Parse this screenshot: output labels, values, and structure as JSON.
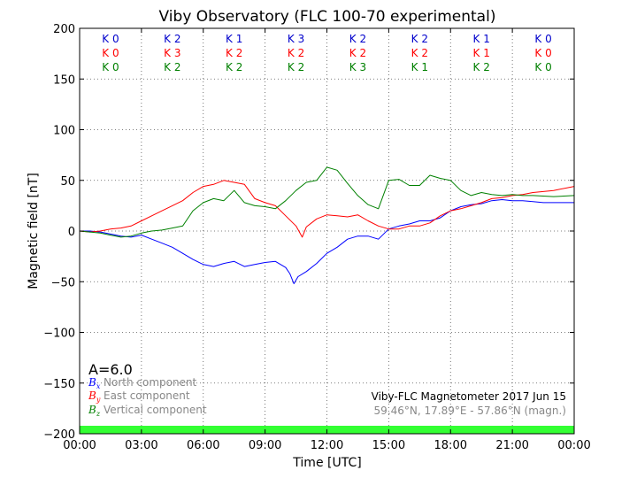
{
  "chart_data": {
    "type": "line",
    "title": "Viby Observatory (FLC 100-70 experimental)",
    "xlabel": "Time [UTC]",
    "ylabel": "Magnetic field [nT]",
    "xlim": [
      0,
      24
    ],
    "ylim": [
      -200,
      200
    ],
    "x_tick_labels": [
      "00:00",
      "03:00",
      "06:00",
      "09:00",
      "12:00",
      "15:00",
      "18:00",
      "21:00",
      "00:00"
    ],
    "y_ticks": [
      200,
      150,
      100,
      50,
      0,
      -50,
      -100,
      -150,
      -200
    ],
    "y_tick_labels": [
      "200",
      "150",
      "100",
      "50",
      "0",
      "−50",
      "−100",
      "−150",
      "−200"
    ],
    "grid": true,
    "k_indices": {
      "rows": [
        {
          "color": "#0000cc",
          "values": [
            "K 0",
            "K 2",
            "K 1",
            "K 3",
            "K 2",
            "K 2",
            "K 1",
            "K 0"
          ]
        },
        {
          "color": "#ff0000",
          "values": [
            "K 0",
            "K 3",
            "K 2",
            "K 2",
            "K 2",
            "K 2",
            "K 1",
            "K 0"
          ]
        },
        {
          "color": "#008000",
          "values": [
            "K 0",
            "K 2",
            "K 2",
            "K 2",
            "K 3",
            "K 1",
            "K 2",
            "K 0"
          ]
        }
      ]
    },
    "a_index": "A=6.0",
    "legend": [
      {
        "symbol": "B",
        "sub": "x",
        "text": "North component",
        "color": "#0000ff"
      },
      {
        "symbol": "B",
        "sub": "y",
        "text": "East component",
        "color": "#ff0000"
      },
      {
        "symbol": "B",
        "sub": "z",
        "text": "Vertical component",
        "color": "#008000"
      }
    ],
    "info": {
      "line1": "Viby-FLC Magnetometer 2017 Jun 15",
      "line2": "59.46°N, 17.89°E - 57.86°N (magn.)"
    },
    "activity_bar_color": "#33ff33",
    "series": [
      {
        "name": "Bx",
        "color": "#0000ff",
        "points": [
          [
            0,
            0
          ],
          [
            0.5,
            0
          ],
          [
            1,
            -1
          ],
          [
            1.5,
            -3
          ],
          [
            2,
            -5
          ],
          [
            2.5,
            -6
          ],
          [
            3,
            -4
          ],
          [
            3.5,
            -8
          ],
          [
            4,
            -12
          ],
          [
            4.5,
            -16
          ],
          [
            5,
            -22
          ],
          [
            5.5,
            -28
          ],
          [
            6,
            -33
          ],
          [
            6.5,
            -35
          ],
          [
            7,
            -32
          ],
          [
            7.5,
            -30
          ],
          [
            8,
            -35
          ],
          [
            8.5,
            -33
          ],
          [
            9,
            -31
          ],
          [
            9.5,
            -30
          ],
          [
            10,
            -36
          ],
          [
            10.2,
            -42
          ],
          [
            10.4,
            -52
          ],
          [
            10.6,
            -45
          ],
          [
            11,
            -40
          ],
          [
            11.5,
            -32
          ],
          [
            12,
            -22
          ],
          [
            12.5,
            -16
          ],
          [
            13,
            -8
          ],
          [
            13.5,
            -5
          ],
          [
            14,
            -5
          ],
          [
            14.5,
            -8
          ],
          [
            15,
            2
          ],
          [
            15.5,
            5
          ],
          [
            16,
            7
          ],
          [
            16.5,
            10
          ],
          [
            17,
            10
          ],
          [
            17.5,
            13
          ],
          [
            18,
            20
          ],
          [
            18.5,
            24
          ],
          [
            19,
            26
          ],
          [
            19.5,
            27
          ],
          [
            20,
            30
          ],
          [
            20.5,
            31
          ],
          [
            21,
            30
          ],
          [
            21.5,
            30
          ],
          [
            22,
            29
          ],
          [
            22.5,
            28
          ],
          [
            23,
            28
          ],
          [
            24,
            28
          ]
        ]
      },
      {
        "name": "By",
        "color": "#ff0000",
        "points": [
          [
            0,
            0
          ],
          [
            0.5,
            -1
          ],
          [
            1,
            0
          ],
          [
            1.5,
            2
          ],
          [
            2,
            3
          ],
          [
            2.5,
            5
          ],
          [
            3,
            10
          ],
          [
            3.5,
            15
          ],
          [
            4,
            20
          ],
          [
            4.5,
            25
          ],
          [
            5,
            30
          ],
          [
            5.5,
            38
          ],
          [
            6,
            44
          ],
          [
            6.5,
            46
          ],
          [
            7,
            50
          ],
          [
            7.5,
            48
          ],
          [
            8,
            46
          ],
          [
            8.5,
            32
          ],
          [
            9,
            28
          ],
          [
            9.5,
            25
          ],
          [
            10,
            15
          ],
          [
            10.5,
            5
          ],
          [
            10.8,
            -6
          ],
          [
            11,
            4
          ],
          [
            11.5,
            12
          ],
          [
            12,
            16
          ],
          [
            12.5,
            15
          ],
          [
            13,
            14
          ],
          [
            13.5,
            16
          ],
          [
            14,
            10
          ],
          [
            14.5,
            5
          ],
          [
            15,
            2
          ],
          [
            15.5,
            2
          ],
          [
            16,
            5
          ],
          [
            16.5,
            5
          ],
          [
            17,
            8
          ],
          [
            17.5,
            15
          ],
          [
            18,
            20
          ],
          [
            18.5,
            22
          ],
          [
            19,
            25
          ],
          [
            19.5,
            28
          ],
          [
            20,
            32
          ],
          [
            20.5,
            33
          ],
          [
            21,
            35
          ],
          [
            21.5,
            36
          ],
          [
            22,
            38
          ],
          [
            23,
            40
          ],
          [
            24,
            44
          ]
        ]
      },
      {
        "name": "Bz",
        "color": "#008000",
        "points": [
          [
            0,
            0
          ],
          [
            0.5,
            -1
          ],
          [
            1,
            -2
          ],
          [
            1.5,
            -4
          ],
          [
            2,
            -6
          ],
          [
            2.5,
            -5
          ],
          [
            3,
            -2
          ],
          [
            3.5,
            0
          ],
          [
            4,
            1
          ],
          [
            4.5,
            3
          ],
          [
            5,
            5
          ],
          [
            5.5,
            20
          ],
          [
            6,
            28
          ],
          [
            6.5,
            32
          ],
          [
            7,
            30
          ],
          [
            7.5,
            40
          ],
          [
            8,
            28
          ],
          [
            8.5,
            25
          ],
          [
            9,
            24
          ],
          [
            9.5,
            22
          ],
          [
            10,
            30
          ],
          [
            10.5,
            40
          ],
          [
            11,
            48
          ],
          [
            11.5,
            50
          ],
          [
            12,
            63
          ],
          [
            12.5,
            60
          ],
          [
            13,
            47
          ],
          [
            13.5,
            35
          ],
          [
            14,
            26
          ],
          [
            14.5,
            22
          ],
          [
            15,
            50
          ],
          [
            15.5,
            51
          ],
          [
            16,
            45
          ],
          [
            16.5,
            45
          ],
          [
            17,
            55
          ],
          [
            17.5,
            52
          ],
          [
            18,
            50
          ],
          [
            18.5,
            40
          ],
          [
            19,
            35
          ],
          [
            19.5,
            38
          ],
          [
            20,
            36
          ],
          [
            20.5,
            35
          ],
          [
            21,
            36
          ],
          [
            21.5,
            35
          ],
          [
            22,
            35
          ],
          [
            23,
            34
          ],
          [
            24,
            35
          ]
        ]
      }
    ]
  }
}
